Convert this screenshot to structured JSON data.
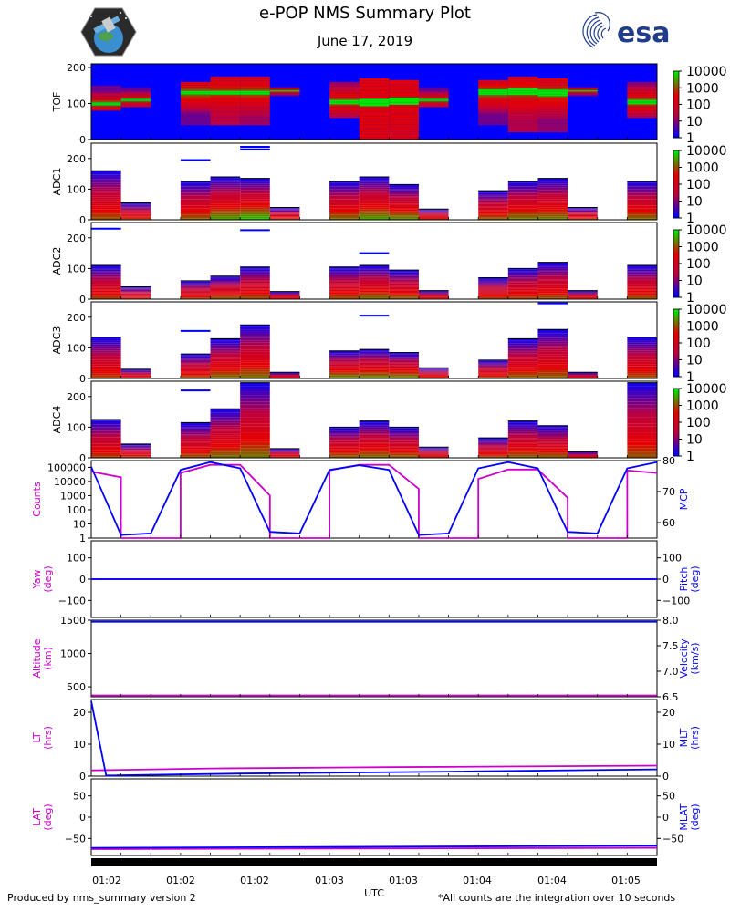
{
  "header": {
    "title": "e-POP NMS Summary Plot",
    "date": "June 17, 2019",
    "esa_label": "esa"
  },
  "footer": {
    "left": "Produced by nms_summary version 2",
    "right": "*All counts are the integration over 10 seconds",
    "xlabel": "UTC"
  },
  "colors": {
    "magenta": "#cc00cc",
    "blue": "#0000ff",
    "spec_bg": "#0000ff"
  },
  "colorbar": {
    "ticks": [
      "10000",
      "1000",
      "100",
      "10",
      "1"
    ]
  },
  "time_ticks": [
    "01:02",
    "01:02",
    "01:02",
    "01:03",
    "01:03",
    "01:04",
    "01:04",
    "01:05"
  ],
  "chart_data": [
    {
      "type": "heatmap",
      "name": "TOF",
      "ylabel": "TOF",
      "yticks": [
        0,
        100,
        200
      ],
      "ylim": [
        0,
        210
      ],
      "blocks": [
        {
          "t0": 0,
          "t1": 1,
          "lo": 80,
          "hi": 150,
          "peak": 100,
          "red": 0.35
        },
        {
          "t0": 1,
          "t1": 2,
          "lo": 90,
          "hi": 145,
          "peak": 110,
          "red": 0.3
        },
        {
          "t0": 3,
          "t1": 4,
          "lo": 40,
          "hi": 160,
          "peak": 130,
          "red": 0.35
        },
        {
          "t0": 4,
          "t1": 5,
          "lo": 40,
          "hi": 175,
          "peak": 130,
          "red": 0.6
        },
        {
          "t0": 5,
          "t1": 6,
          "lo": 40,
          "hi": 175,
          "peak": 130,
          "red": 0.5
        },
        {
          "t0": 6,
          "t1": 7,
          "lo": 120,
          "hi": 145,
          "peak": 135,
          "red": 0.3
        },
        {
          "t0": 8,
          "t1": 9,
          "lo": 60,
          "hi": 160,
          "peak": 105,
          "red": 0.45
        },
        {
          "t0": 9,
          "t1": 10,
          "lo": 0,
          "hi": 170,
          "peak": 105,
          "red": 0.95
        },
        {
          "t0": 10,
          "t1": 11,
          "lo": 0,
          "hi": 165,
          "peak": 105,
          "red": 0.9
        },
        {
          "t0": 11,
          "t1": 12,
          "lo": 90,
          "hi": 145,
          "peak": 110,
          "red": 0.3
        },
        {
          "t0": 13,
          "t1": 14,
          "lo": 40,
          "hi": 165,
          "peak": 130,
          "red": 0.35
        },
        {
          "t0": 14,
          "t1": 15,
          "lo": 20,
          "hi": 175,
          "peak": 130,
          "red": 0.55
        },
        {
          "t0": 15,
          "t1": 16,
          "lo": 20,
          "hi": 170,
          "peak": 130,
          "red": 0.45
        },
        {
          "t0": 16,
          "t1": 17,
          "lo": 120,
          "hi": 145,
          "peak": 135,
          "red": 0.3
        },
        {
          "t0": 18,
          "t1": 19,
          "lo": 60,
          "hi": 160,
          "peak": 105,
          "red": 0.4
        }
      ]
    },
    {
      "type": "heatmap",
      "name": "ADC1",
      "ylabel": "ADC1",
      "yticks": [
        0,
        100,
        200
      ],
      "ylim": [
        0,
        250
      ],
      "blocks": [
        {
          "t0": 0,
          "t1": 1,
          "hi": 160,
          "green": 0.35
        },
        {
          "t0": 1,
          "t1": 2,
          "hi": 55,
          "green": 0.3
        },
        {
          "t0": 3,
          "t1": 4,
          "hi": 125,
          "green": 0.4,
          "lines": [
            195
          ]
        },
        {
          "t0": 4,
          "t1": 5,
          "hi": 140,
          "green": 0.6
        },
        {
          "t0": 5,
          "t1": 6,
          "hi": 135,
          "green": 0.7,
          "lines": [
            238,
            230
          ]
        },
        {
          "t0": 6,
          "t1": 7,
          "hi": 40,
          "green": 0.3
        },
        {
          "t0": 8,
          "t1": 9,
          "hi": 125,
          "green": 0.45
        },
        {
          "t0": 9,
          "t1": 10,
          "hi": 140,
          "green": 0.6
        },
        {
          "t0": 10,
          "t1": 11,
          "hi": 115,
          "green": 0.55
        },
        {
          "t0": 11,
          "t1": 12,
          "hi": 35,
          "green": 0.3
        },
        {
          "t0": 13,
          "t1": 14,
          "hi": 95,
          "green": 0.4
        },
        {
          "t0": 14,
          "t1": 15,
          "hi": 125,
          "green": 0.5
        },
        {
          "t0": 15,
          "t1": 16,
          "hi": 135,
          "green": 0.5
        },
        {
          "t0": 16,
          "t1": 17,
          "hi": 40,
          "green": 0.3
        },
        {
          "t0": 18,
          "t1": 19,
          "hi": 125,
          "green": 0.45
        }
      ]
    },
    {
      "type": "heatmap",
      "name": "ADC2",
      "ylabel": "ADC2",
      "yticks": [
        0,
        100,
        200
      ],
      "ylim": [
        0,
        250
      ],
      "blocks": [
        {
          "t0": 0,
          "t1": 1,
          "hi": 110,
          "green": 0.3,
          "lines": [
            230
          ]
        },
        {
          "t0": 1,
          "t1": 2,
          "hi": 40,
          "green": 0.25
        },
        {
          "t0": 3,
          "t1": 4,
          "hi": 60,
          "green": 0.3
        },
        {
          "t0": 4,
          "t1": 5,
          "hi": 75,
          "green": 0.4
        },
        {
          "t0": 5,
          "t1": 6,
          "hi": 105,
          "green": 0.35,
          "lines": [
            225
          ]
        },
        {
          "t0": 6,
          "t1": 7,
          "hi": 25,
          "green": 0.25
        },
        {
          "t0": 8,
          "t1": 9,
          "hi": 105,
          "green": 0.35
        },
        {
          "t0": 9,
          "t1": 10,
          "hi": 110,
          "green": 0.45,
          "lines": [
            150
          ]
        },
        {
          "t0": 10,
          "t1": 11,
          "hi": 95,
          "green": 0.4
        },
        {
          "t0": 11,
          "t1": 12,
          "hi": 28,
          "green": 0.25
        },
        {
          "t0": 13,
          "t1": 14,
          "hi": 70,
          "green": 0.3
        },
        {
          "t0": 14,
          "t1": 15,
          "hi": 100,
          "green": 0.3
        },
        {
          "t0": 15,
          "t1": 16,
          "hi": 120,
          "green": 0.35
        },
        {
          "t0": 16,
          "t1": 17,
          "hi": 28,
          "green": 0.25
        },
        {
          "t0": 18,
          "t1": 19,
          "hi": 110,
          "green": 0.35
        }
      ]
    },
    {
      "type": "heatmap",
      "name": "ADC3",
      "ylabel": "ADC3",
      "yticks": [
        0,
        100,
        200
      ],
      "ylim": [
        0,
        250
      ],
      "blocks": [
        {
          "t0": 0,
          "t1": 1,
          "hi": 135,
          "green": 0.3
        },
        {
          "t0": 1,
          "t1": 2,
          "hi": 30,
          "green": 0.3
        },
        {
          "t0": 3,
          "t1": 4,
          "hi": 80,
          "green": 0.35,
          "lines": [
            155
          ]
        },
        {
          "t0": 4,
          "t1": 5,
          "hi": 130,
          "green": 0.45
        },
        {
          "t0": 5,
          "t1": 6,
          "hi": 175,
          "green": 0.45
        },
        {
          "t0": 6,
          "t1": 7,
          "hi": 20,
          "green": 0.3
        },
        {
          "t0": 8,
          "t1": 9,
          "hi": 90,
          "green": 0.55
        },
        {
          "t0": 9,
          "t1": 10,
          "hi": 95,
          "green": 0.55,
          "lines": [
            205
          ]
        },
        {
          "t0": 10,
          "t1": 11,
          "hi": 85,
          "green": 0.55
        },
        {
          "t0": 11,
          "t1": 12,
          "hi": 35,
          "green": 0.3
        },
        {
          "t0": 13,
          "t1": 14,
          "hi": 60,
          "green": 0.35
        },
        {
          "t0": 14,
          "t1": 15,
          "hi": 130,
          "green": 0.4
        },
        {
          "t0": 15,
          "t1": 16,
          "hi": 160,
          "green": 0.4,
          "lines": [
            245
          ]
        },
        {
          "t0": 16,
          "t1": 17,
          "hi": 20,
          "green": 0.3
        },
        {
          "t0": 18,
          "t1": 19,
          "hi": 135,
          "green": 0.35
        }
      ]
    },
    {
      "type": "heatmap",
      "name": "ADC4",
      "ylabel": "ADC4",
      "yticks": [
        0,
        100,
        200
      ],
      "ylim": [
        0,
        250
      ],
      "blocks": [
        {
          "t0": 0,
          "t1": 1,
          "hi": 125,
          "green": 0.3
        },
        {
          "t0": 1,
          "t1": 2,
          "hi": 45,
          "green": 0.3
        },
        {
          "t0": 3,
          "t1": 4,
          "hi": 115,
          "green": 0.35,
          "lines": [
            220
          ]
        },
        {
          "t0": 4,
          "t1": 5,
          "hi": 160,
          "green": 0.45
        },
        {
          "t0": 5,
          "t1": 6,
          "hi": 245,
          "green": 0.45
        },
        {
          "t0": 6,
          "t1": 7,
          "hi": 30,
          "green": 0.3
        },
        {
          "t0": 8,
          "t1": 9,
          "hi": 100,
          "green": 0.4
        },
        {
          "t0": 9,
          "t1": 10,
          "hi": 120,
          "green": 0.45
        },
        {
          "t0": 10,
          "t1": 11,
          "hi": 100,
          "green": 0.4
        },
        {
          "t0": 11,
          "t1": 12,
          "hi": 35,
          "green": 0.3
        },
        {
          "t0": 13,
          "t1": 14,
          "hi": 65,
          "green": 0.35
        },
        {
          "t0": 14,
          "t1": 15,
          "hi": 120,
          "green": 0.4
        },
        {
          "t0": 15,
          "t1": 16,
          "hi": 105,
          "green": 0.4
        },
        {
          "t0": 16,
          "t1": 17,
          "hi": 20,
          "green": 0.3
        },
        {
          "t0": 18,
          "t1": 19,
          "hi": 245,
          "green": 0.35
        }
      ]
    },
    {
      "type": "line",
      "name": "counts-mcp",
      "left": {
        "label": "Counts",
        "scale": "log",
        "ylim": [
          1,
          300000
        ],
        "ticks": [
          "100000",
          "10000",
          "1000",
          "100",
          "10",
          "1"
        ],
        "tickvals": [
          100000,
          10000,
          1000,
          100,
          10,
          1
        ]
      },
      "right": {
        "label": "MCP",
        "scale": "linear",
        "ylim": [
          55,
          80
        ],
        "ticks": [
          "80",
          "70",
          "60"
        ],
        "tickvals": [
          80,
          70,
          60
        ]
      },
      "series": [
        {
          "name": "Counts",
          "axis": "left",
          "color": "#cc00cc",
          "x": [
            0,
            1,
            1,
            3,
            3,
            4,
            5,
            6,
            6,
            8,
            8,
            9,
            10,
            11,
            11,
            13,
            13,
            14,
            15,
            16,
            16,
            18,
            18,
            19
          ],
          "y": [
            50000,
            20000,
            1,
            1,
            40000,
            150000,
            150000,
            1000,
            1,
            1,
            60000,
            150000,
            150000,
            3000,
            1,
            1,
            15000,
            70000,
            70000,
            700,
            1,
            1,
            60000,
            40000
          ]
        },
        {
          "name": "MCP",
          "axis": "right",
          "color": "#0000ff",
          "x": [
            0,
            1,
            2,
            3,
            4,
            5,
            6,
            7,
            8,
            9,
            10,
            11,
            12,
            13,
            14,
            15,
            16,
            17,
            18,
            19
          ],
          "y": [
            78,
            56,
            56.5,
            77,
            79.5,
            77.5,
            57,
            56.5,
            77,
            78.5,
            77,
            56,
            56.5,
            77.5,
            79.5,
            77.5,
            57,
            56.5,
            77.5,
            79.5
          ]
        }
      ]
    },
    {
      "type": "line",
      "name": "yaw-pitch",
      "left": {
        "label": "Yaw",
        "label2": "(deg)",
        "scale": "linear",
        "ylim": [
          -180,
          180
        ],
        "ticks": [
          "100",
          "0",
          "−100"
        ],
        "tickvals": [
          100,
          0,
          -100
        ]
      },
      "right": {
        "label": "Pitch",
        "label2": "(deg)",
        "scale": "linear",
        "ylim": [
          -180,
          180
        ],
        "ticks": [
          "100",
          "0",
          "−100"
        ],
        "tickvals": [
          100,
          0,
          -100
        ]
      },
      "series": [
        {
          "name": "Yaw",
          "axis": "left",
          "color": "#cc00cc",
          "x": [
            0,
            19
          ],
          "y": [
            0,
            0
          ]
        },
        {
          "name": "Pitch",
          "axis": "right",
          "color": "#0000ff",
          "x": [
            0,
            19
          ],
          "y": [
            0,
            0
          ]
        }
      ]
    },
    {
      "type": "line",
      "name": "altitude-velocity",
      "left": {
        "label": "Altitude",
        "label2": "(km)",
        "scale": "linear",
        "ylim": [
          350,
          1500
        ],
        "ticks": [
          "1500",
          "1000",
          "500"
        ],
        "tickvals": [
          1500,
          1000,
          500
        ]
      },
      "right": {
        "label": "Velocity",
        "label2": "(km/s)",
        "scale": "linear",
        "ylim": [
          6.5,
          8.0
        ],
        "ticks": [
          "8.0",
          "7.5",
          "7.0",
          "6.5"
        ],
        "tickvals": [
          8.0,
          7.5,
          7.0,
          6.5
        ]
      },
      "series": [
        {
          "name": "Altitude",
          "axis": "left",
          "color": "#cc00cc",
          "x": [
            0,
            19
          ],
          "y": [
            370,
            370
          ]
        },
        {
          "name": "Velocity",
          "axis": "right",
          "color": "#0000ff",
          "x": [
            0,
            19
          ],
          "y": [
            7.97,
            7.97
          ]
        }
      ]
    },
    {
      "type": "line",
      "name": "lt-mlt",
      "left": {
        "label": "LT",
        "label2": "(hrs)",
        "scale": "linear",
        "ylim": [
          0,
          24
        ],
        "ticks": [
          "20",
          "10",
          "0"
        ],
        "tickvals": [
          20,
          10,
          0
        ]
      },
      "right": {
        "label": "MLT",
        "label2": "(hrs)",
        "scale": "linear",
        "ylim": [
          0,
          24
        ],
        "ticks": [
          "20",
          "10",
          "0"
        ],
        "tickvals": [
          20,
          10,
          0
        ]
      },
      "series": [
        {
          "name": "LT",
          "axis": "left",
          "color": "#cc00cc",
          "x": [
            0,
            4,
            10,
            19
          ],
          "y": [
            1.8,
            2.4,
            2.8,
            3.3
          ]
        },
        {
          "name": "MLT",
          "axis": "right",
          "color": "#0000ff",
          "x": [
            0,
            0.5,
            5,
            12,
            19
          ],
          "y": [
            23.5,
            0.2,
            0.8,
            1.4,
            2.1
          ]
        }
      ]
    },
    {
      "type": "line",
      "name": "lat-mlat",
      "left": {
        "label": "LAT",
        "label2": "(deg)",
        "scale": "linear",
        "ylim": [
          -90,
          90
        ],
        "ticks": [
          "50",
          "0",
          "−50"
        ],
        "tickvals": [
          50,
          0,
          -50
        ]
      },
      "right": {
        "label": "MLAT",
        "label2": "(deg)",
        "scale": "linear",
        "ylim": [
          -90,
          90
        ],
        "ticks": [
          "50",
          "0",
          "−50"
        ],
        "tickvals": [
          50,
          0,
          -50
        ]
      },
      "series": [
        {
          "name": "LAT",
          "axis": "left",
          "color": "#cc00cc",
          "x": [
            0,
            19
          ],
          "y": [
            -75,
            -72
          ]
        },
        {
          "name": "MLAT",
          "axis": "right",
          "color": "#0000ff",
          "x": [
            0,
            19
          ],
          "y": [
            -72,
            -67
          ]
        }
      ]
    }
  ]
}
